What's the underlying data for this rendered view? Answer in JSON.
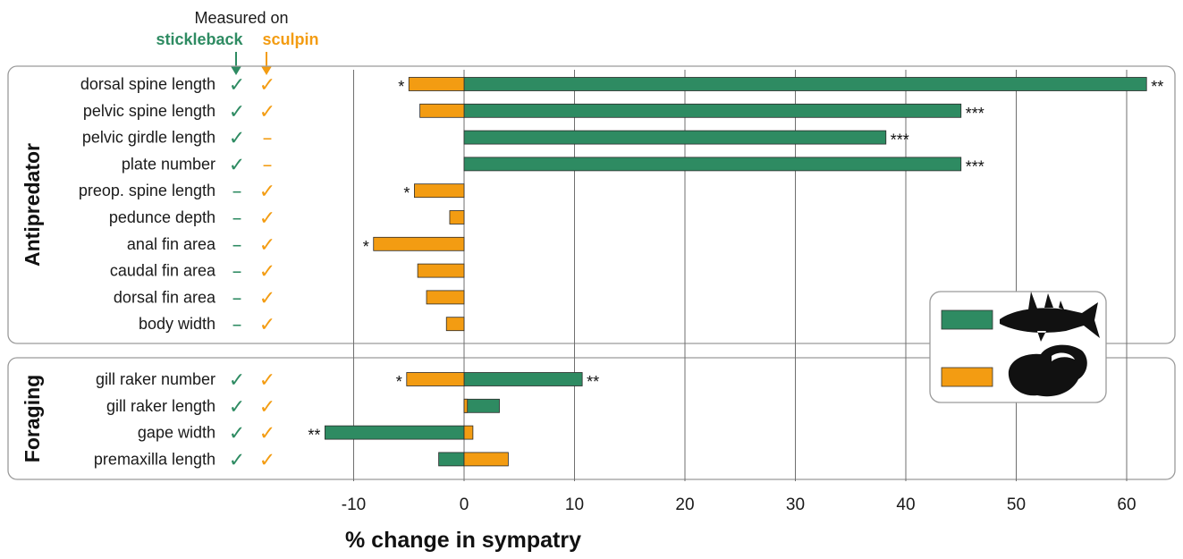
{
  "header": {
    "measured_on": "Measured on",
    "stickleback": "stickleback",
    "sculpin": "sculpin"
  },
  "colors": {
    "stickleback": "#2e8b62",
    "sculpin": "#f39c12"
  },
  "chart_data": {
    "type": "bar",
    "orientation": "horizontal",
    "xlabel": "% change in sympatry",
    "xlim": [
      -15,
      63
    ],
    "xticks": [
      -10,
      0,
      10,
      20,
      30,
      40,
      50,
      60
    ],
    "grid": "vertical",
    "legend": {
      "placement": "right",
      "entries": [
        "stickleback-icon",
        "sculpin-icon"
      ]
    },
    "groups": [
      {
        "name": "Antipredator",
        "traits": [
          {
            "label": "dorsal spine length",
            "stickleback_measured": "✓",
            "sculpin_measured": "✓",
            "stickleback": 61.8,
            "sculpin": -5.0,
            "stickleback_sig": "**",
            "sculpin_sig": "*"
          },
          {
            "label": "pelvic spine length",
            "stickleback_measured": "✓",
            "sculpin_measured": "✓",
            "stickleback": 45.0,
            "sculpin": -4.0,
            "stickleback_sig": "***",
            "sculpin_sig": ""
          },
          {
            "label": "pelvic girdle length",
            "stickleback_measured": "✓",
            "sculpin_measured": "–",
            "stickleback": 38.2,
            "sculpin": null,
            "stickleback_sig": "***",
            "sculpin_sig": ""
          },
          {
            "label": "plate number",
            "stickleback_measured": "✓",
            "sculpin_measured": "–",
            "stickleback": 45.0,
            "sculpin": null,
            "stickleback_sig": "***",
            "sculpin_sig": ""
          },
          {
            "label": "preop. spine length",
            "stickleback_measured": "–",
            "sculpin_measured": "✓",
            "stickleback": null,
            "sculpin": -4.5,
            "stickleback_sig": "",
            "sculpin_sig": "*"
          },
          {
            "label": "pedunce depth",
            "stickleback_measured": "–",
            "sculpin_measured": "✓",
            "stickleback": null,
            "sculpin": -1.3,
            "stickleback_sig": "",
            "sculpin_sig": ""
          },
          {
            "label": "anal fin area",
            "stickleback_measured": "–",
            "sculpin_measured": "✓",
            "stickleback": null,
            "sculpin": -8.2,
            "stickleback_sig": "",
            "sculpin_sig": "*"
          },
          {
            "label": "caudal fin area",
            "stickleback_measured": "–",
            "sculpin_measured": "✓",
            "stickleback": null,
            "sculpin": -4.2,
            "stickleback_sig": "",
            "sculpin_sig": ""
          },
          {
            "label": "dorsal fin area",
            "stickleback_measured": "–",
            "sculpin_measured": "✓",
            "stickleback": null,
            "sculpin": -3.4,
            "stickleback_sig": "",
            "sculpin_sig": ""
          },
          {
            "label": "body width",
            "stickleback_measured": "–",
            "sculpin_measured": "✓",
            "stickleback": null,
            "sculpin": -1.6,
            "stickleback_sig": "",
            "sculpin_sig": ""
          }
        ]
      },
      {
        "name": "Foraging",
        "traits": [
          {
            "label": "gill raker number",
            "stickleback_measured": "✓",
            "sculpin_measured": "✓",
            "stickleback": 10.7,
            "sculpin": -5.2,
            "stickleback_sig": "**",
            "sculpin_sig": "*"
          },
          {
            "label": "gill raker length",
            "stickleback_measured": "✓",
            "sculpin_measured": "✓",
            "stickleback": 3.2,
            "sculpin": 0.3,
            "stickleback_sig": "",
            "sculpin_sig": ""
          },
          {
            "label": "gape width",
            "stickleback_measured": "✓",
            "sculpin_measured": "✓",
            "stickleback": -12.6,
            "sculpin": 0.8,
            "stickleback_sig": "**",
            "sculpin_sig": ""
          },
          {
            "label": "premaxilla length",
            "stickleback_measured": "✓",
            "sculpin_measured": "✓",
            "stickleback": -2.3,
            "sculpin": 4.0,
            "stickleback_sig": "",
            "sculpin_sig": ""
          }
        ]
      }
    ]
  }
}
